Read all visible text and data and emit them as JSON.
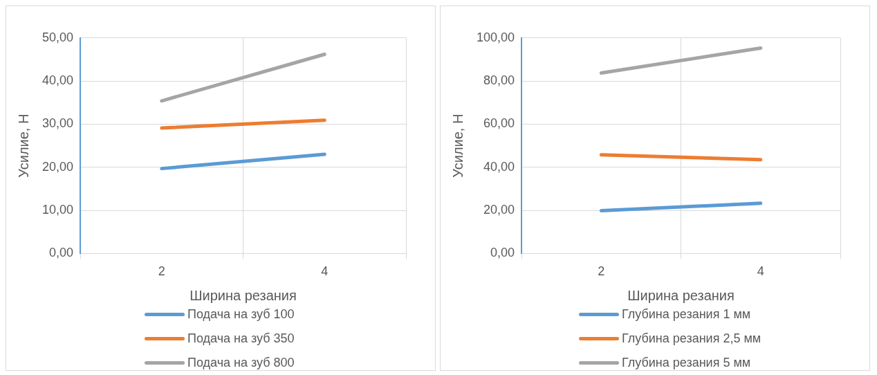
{
  "chart_data": [
    {
      "type": "line",
      "xlabel": "Ширина резания",
      "ylabel": "Усилие, Н",
      "categories": [
        "2",
        "4"
      ],
      "ylim": [
        0,
        50
      ],
      "yticks": [
        {
          "value": 0,
          "label": "0,00"
        },
        {
          "value": 10,
          "label": "10,00"
        },
        {
          "value": 20,
          "label": "20,00"
        },
        {
          "value": 30,
          "label": "30,00"
        },
        {
          "value": 40,
          "label": "40,00"
        },
        {
          "value": 50,
          "label": "50,00"
        }
      ],
      "grid": true,
      "legend": "bottom",
      "marker": "none",
      "series": [
        {
          "name": "Подача на зуб 100",
          "color": "#5b9bd5",
          "values": [
            19.7,
            23.0
          ]
        },
        {
          "name": "Подача на зуб 350",
          "color": "#ed7d31",
          "values": [
            29.1,
            30.9
          ]
        },
        {
          "name": "Подача на зуб 800",
          "color": "#a5a5a5",
          "values": [
            35.4,
            46.2
          ]
        }
      ]
    },
    {
      "type": "line",
      "xlabel": "Ширина резания",
      "ylabel": "Усилие, Н",
      "categories": [
        "2",
        "4"
      ],
      "ylim": [
        0,
        100
      ],
      "yticks": [
        {
          "value": 0,
          "label": "0,00"
        },
        {
          "value": 20,
          "label": "20,00"
        },
        {
          "value": 40,
          "label": "40,00"
        },
        {
          "value": 60,
          "label": "60,00"
        },
        {
          "value": 80,
          "label": "80,00"
        },
        {
          "value": 100,
          "label": "100,00"
        }
      ],
      "grid": true,
      "legend": "bottom",
      "marker": "none",
      "series": [
        {
          "name": "Глубина резания 1 мм",
          "color": "#5b9bd5",
          "values": [
            19.9,
            23.3
          ]
        },
        {
          "name": "Глубина резания 2,5 мм",
          "color": "#ed7d31",
          "values": [
            45.8,
            43.5
          ]
        },
        {
          "name": "Глубина резания 5 мм",
          "color": "#a5a5a5",
          "values": [
            83.7,
            95.3
          ]
        }
      ]
    }
  ]
}
